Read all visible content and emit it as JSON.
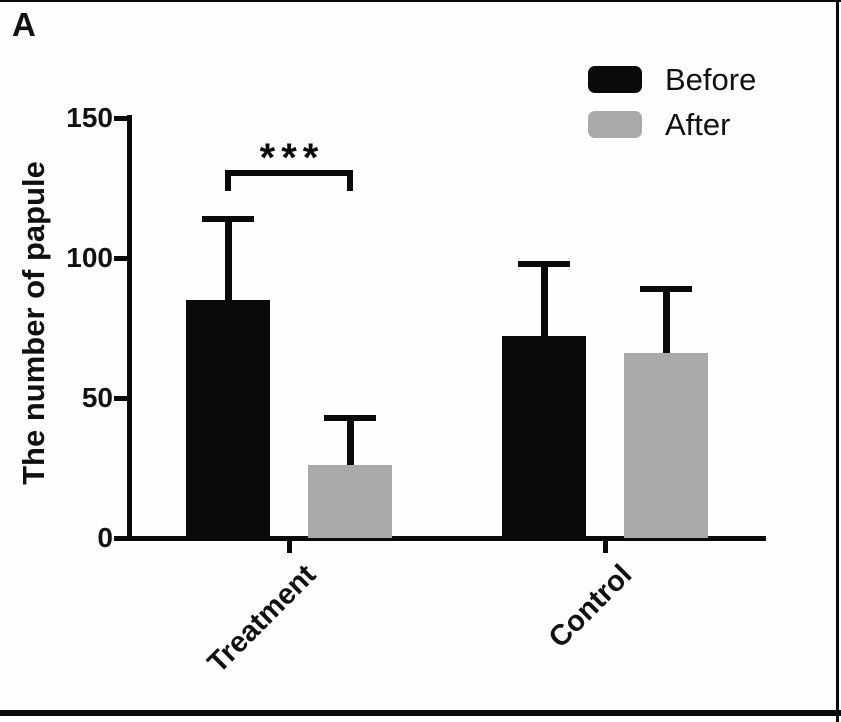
{
  "panel_label": "A",
  "chart_data": {
    "type": "bar",
    "title": "",
    "xlabel": "",
    "ylabel": "The number of papule",
    "ylim": [
      0,
      150
    ],
    "yticks": [
      0,
      50,
      100,
      150
    ],
    "categories": [
      "Treatment",
      "Control"
    ],
    "series": [
      {
        "name": "Before",
        "color": "#0a0a0a",
        "values": [
          85,
          72
        ],
        "errors_upper": [
          30,
          27
        ]
      },
      {
        "name": "After",
        "color": "#a9a9a9",
        "values": [
          26,
          66
        ],
        "errors_upper": [
          18,
          24
        ]
      }
    ],
    "error_bars": "upper SD whiskers with caps",
    "grid": false,
    "legend": {
      "position": "top-right",
      "entries": [
        "Before",
        "After"
      ]
    },
    "significance": {
      "category": "Treatment",
      "between": [
        "Before",
        "After"
      ],
      "label": "***"
    }
  }
}
